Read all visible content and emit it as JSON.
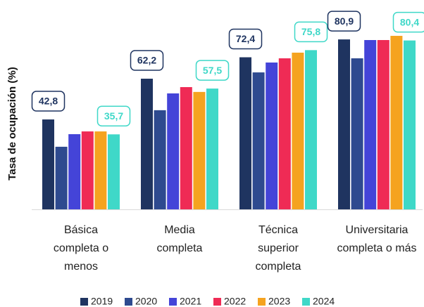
{
  "chart_data": {
    "type": "bar",
    "y_label": "Tasa de ocupación (%)",
    "categories": [
      "Básica completa o menos",
      "Media completa",
      "Técnica superior completa",
      "Universitaria completa o más"
    ],
    "ylim": [
      0,
      100
    ],
    "legend": "bottom",
    "series": [
      {
        "name": "2019",
        "color": "#1f3460",
        "values": [
          42.8,
          62.2,
          72.4,
          80.9
        ],
        "value_labels": [
          "42,8",
          "62,2",
          "72,4",
          "80,9"
        ]
      },
      {
        "name": "2020",
        "color": "#2e4a8f",
        "values": [
          29.8,
          47.2,
          65.2,
          71.9
        ]
      },
      {
        "name": "2021",
        "color": "#4444d8",
        "values": [
          35.8,
          55.2,
          69.9,
          80.6
        ]
      },
      {
        "name": "2022",
        "color": "#ef2b55",
        "values": [
          37.1,
          58.2,
          71.9,
          80.6
        ]
      },
      {
        "name": "2023",
        "color": "#f5a31f",
        "values": [
          37.1,
          55.9,
          74.6,
          82.6
        ]
      },
      {
        "name": "2024",
        "color": "#3fd8c8",
        "values": [
          35.7,
          57.5,
          75.8,
          80.4
        ],
        "value_labels": [
          "35,7",
          "57,5",
          "75,8",
          "80,4"
        ]
      }
    ]
  }
}
